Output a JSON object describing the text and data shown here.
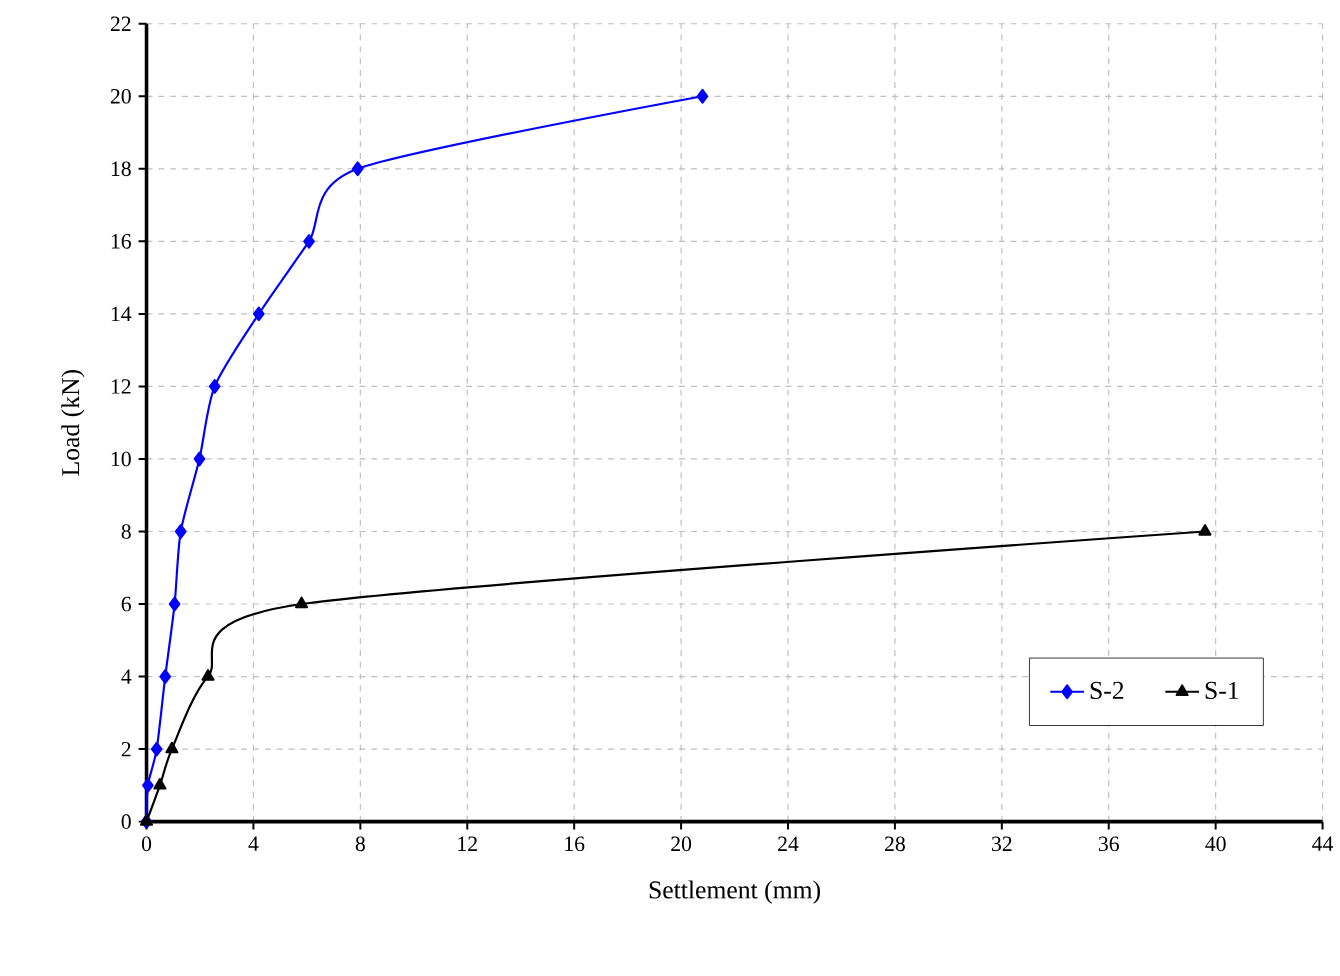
{
  "chart_data": {
    "type": "line",
    "xlabel": "Settlement (mm)",
    "ylabel": "Load (kN)",
    "xlim": [
      0,
      44
    ],
    "xticks": [
      0,
      4,
      8,
      12,
      16,
      20,
      24,
      28,
      32,
      36,
      40,
      44
    ],
    "ylim": [
      0,
      22
    ],
    "yticks": [
      0,
      2,
      4,
      6,
      8,
      10,
      12,
      14,
      16,
      18,
      20,
      22
    ],
    "grid": true,
    "legend": "bottom right",
    "series": [
      {
        "name": "S-2",
        "color": "#0000ff",
        "marker": "diamond",
        "x": [
          0,
          0.05,
          0.38,
          0.7,
          1.05,
          1.28,
          1.98,
          2.55,
          4.2,
          6.08,
          7.9,
          20.8
        ],
        "values": [
          0,
          1,
          2,
          4,
          6,
          8,
          10,
          12,
          14,
          16,
          18,
          20
        ]
      },
      {
        "name": "S-1",
        "color": "#000000",
        "marker": "triangle",
        "x": [
          0,
          0.5,
          0.95,
          2.3,
          5.8,
          39.6
        ],
        "values": [
          0,
          1,
          2,
          4,
          6,
          8
        ]
      }
    ]
  }
}
